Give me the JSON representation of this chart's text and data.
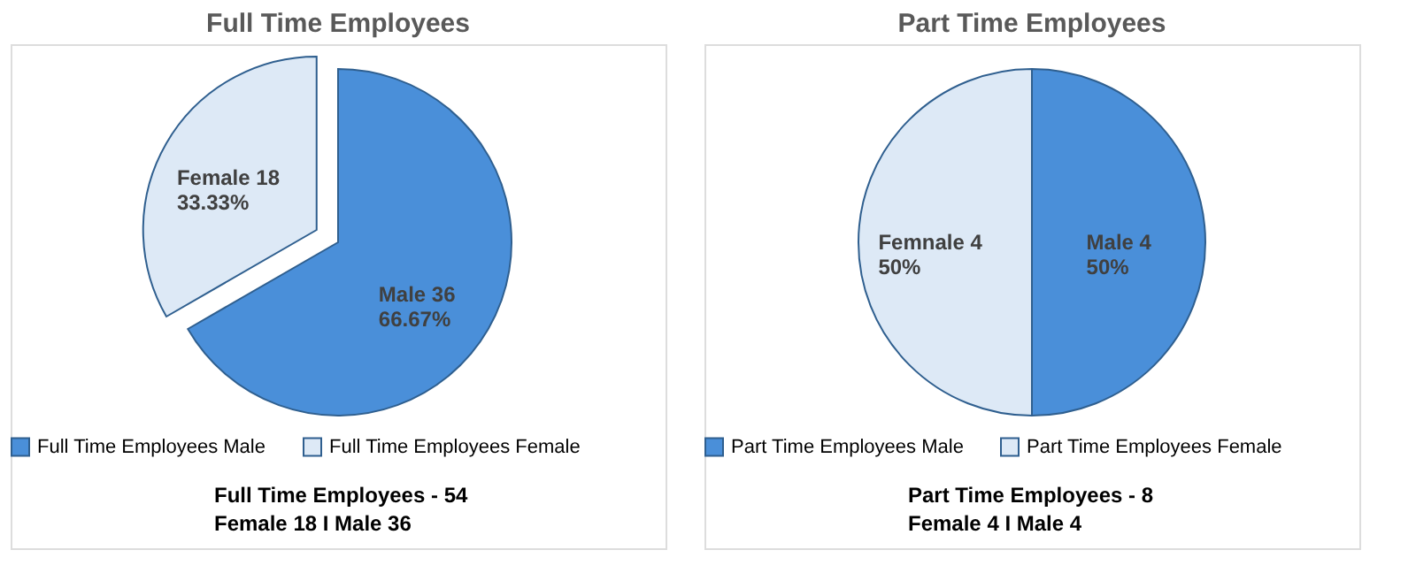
{
  "chart_data": [
    {
      "type": "pie",
      "title": "Full Time Employees",
      "categories": [
        "Full Time Employees Male",
        "Full Time Employees Female"
      ],
      "values": [
        36,
        18
      ],
      "colors": [
        "#4a8fd9",
        "#dde9f6"
      ],
      "value_labels": [
        "Male 36\n66.67%",
        "Female 18\n33.33%"
      ],
      "legend": "bottom",
      "annotations": [
        "Full Time Employees  - 54",
        "Female 18  I  Male 36"
      ]
    },
    {
      "type": "pie",
      "title": "Part Time Employees",
      "categories": [
        "Part Time Employees Male",
        "Part Time Employees Female"
      ],
      "values": [
        4,
        4
      ],
      "colors": [
        "#4a8fd9",
        "#dde9f6"
      ],
      "value_labels": [
        "Male 4\n50%",
        "Femnale 4\n50%"
      ],
      "legend": "bottom",
      "annotations": [
        "Part Time Employees  - 8",
        "Female 4  I  Male 4"
      ]
    }
  ]
}
